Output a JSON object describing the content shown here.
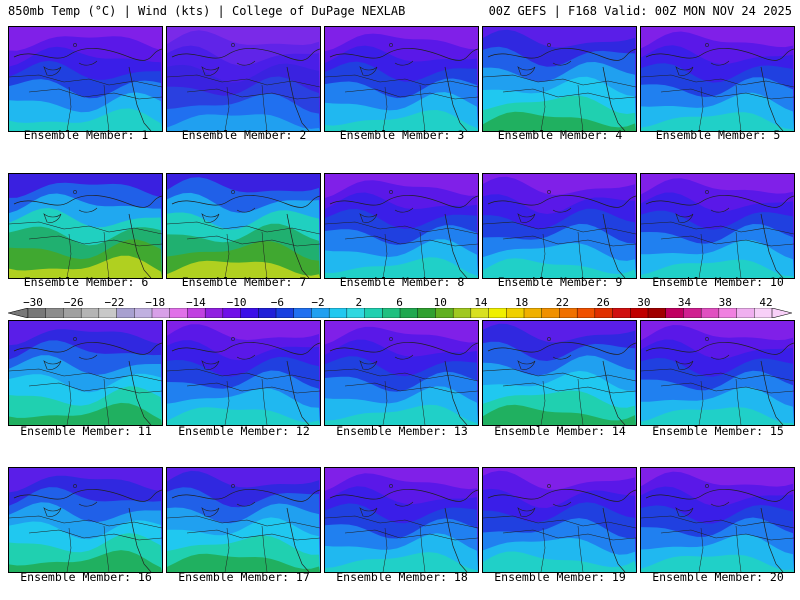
{
  "header": {
    "left": "850mb Temp (°C) | Wind (kts) | College of DuPage NEXLAB",
    "right": "00Z GEFS | F168 Valid: 00Z MON NOV 24 2025"
  },
  "members": [
    {
      "label": "Ensemble Member: 1",
      "style": "cold"
    },
    {
      "label": "Ensemble Member: 2",
      "style": "vcold"
    },
    {
      "label": "Ensemble Member: 3",
      "style": "cold"
    },
    {
      "label": "Ensemble Member: 4",
      "style": "mild"
    },
    {
      "label": "Ensemble Member: 5",
      "style": "cold"
    },
    {
      "label": "Ensemble Member: 6",
      "style": "warm"
    },
    {
      "label": "Ensemble Member: 7",
      "style": "warm"
    },
    {
      "label": "Ensemble Member: 8",
      "style": "cold"
    },
    {
      "label": "Ensemble Member: 9",
      "style": "cold"
    },
    {
      "label": "Ensemble Member: 10",
      "style": "cold"
    },
    {
      "label": "Ensemble Member: 11",
      "style": "mild"
    },
    {
      "label": "Ensemble Member: 12",
      "style": "cold"
    },
    {
      "label": "Ensemble Member: 13",
      "style": "cold"
    },
    {
      "label": "Ensemble Member: 14",
      "style": "mild"
    },
    {
      "label": "Ensemble Member: 15",
      "style": "cold"
    },
    {
      "label": "Ensemble Member: 16",
      "style": "mild"
    },
    {
      "label": "Ensemble Member: 17",
      "style": "mild"
    },
    {
      "label": "Ensemble Member: 18",
      "style": "cold"
    },
    {
      "label": "Ensemble Member: 19",
      "style": "cold"
    },
    {
      "label": "Ensemble Member: 20",
      "style": "cold"
    }
  ],
  "colorbar": {
    "ticks": [
      "−30",
      "−26",
      "−22",
      "−18",
      "−14",
      "−10",
      "−6",
      "−2",
      "2",
      "6",
      "10",
      "14",
      "18",
      "22",
      "26",
      "30",
      "34",
      "38",
      "42"
    ],
    "colors": [
      "#787878",
      "#8c8c8c",
      "#a0a0a0",
      "#b4b4b4",
      "#c8c8c8",
      "#a8a0d0",
      "#c0b0e0",
      "#d8a0e8",
      "#e070e8",
      "#c040e0",
      "#9020e0",
      "#7010e8",
      "#3c10e8",
      "#2020d8",
      "#1840e0",
      "#2070f0",
      "#20a0f0",
      "#20c8f0",
      "#30d8e0",
      "#20d0b0",
      "#20c080",
      "#20a850",
      "#30a030",
      "#60b020",
      "#a0c820",
      "#d8e020",
      "#f0f000",
      "#f0d000",
      "#f0b000",
      "#f09000",
      "#f07000",
      "#f05000",
      "#e03000",
      "#d01010",
      "#c00000",
      "#a00000",
      "#c00060",
      "#d02090",
      "#e050c0",
      "#f080e0",
      "#f0b0f0",
      "#f8d0f8"
    ]
  }
}
